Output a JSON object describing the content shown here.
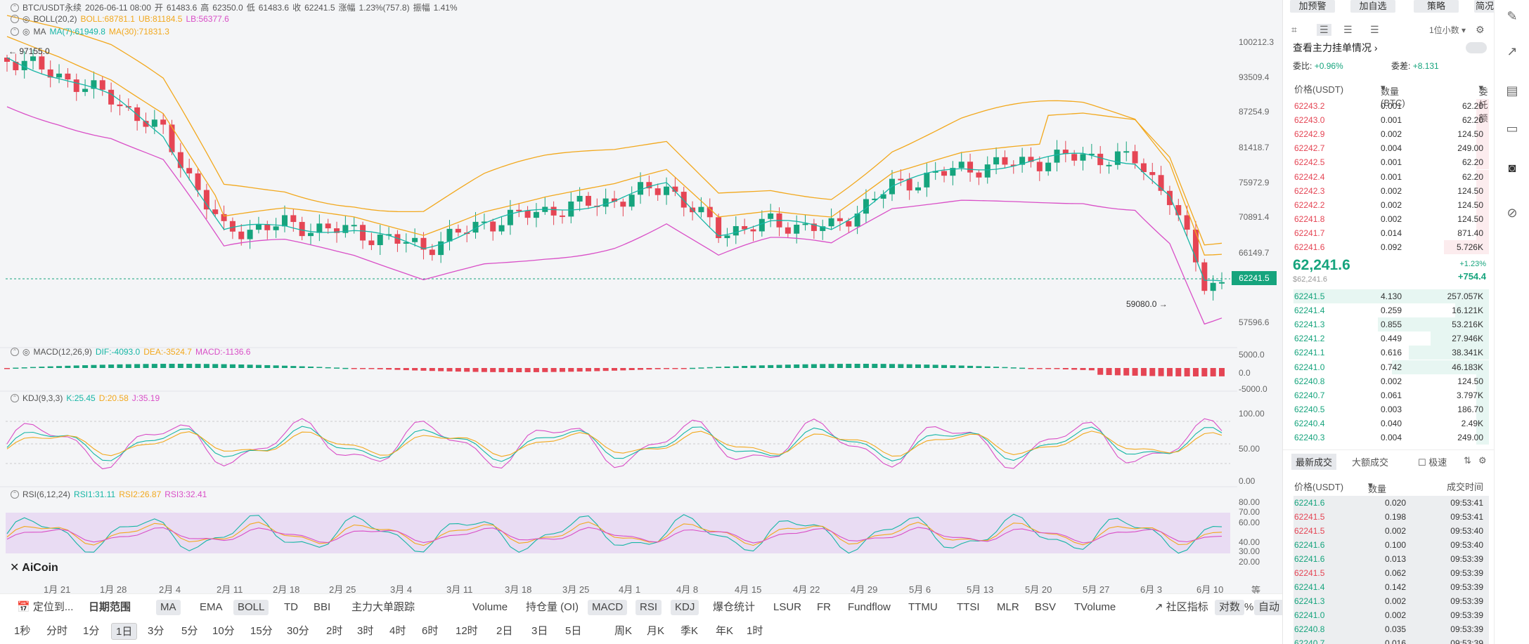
{
  "header": {
    "pair": "BTC/USDT永续",
    "datetime": "2026-06-11 08:00",
    "open_label": "开",
    "open": "61483.6",
    "high_label": "高",
    "high": "62350.0",
    "low_label": "低",
    "low": "61483.6",
    "close_label": "收",
    "close": "62241.5",
    "change_label": "涨幅",
    "change": "1.23%(757.8)",
    "amp_label": "振幅",
    "amp": "1.41%"
  },
  "boll": {
    "name": "BOLL(20,2)",
    "boll": "BOLL:68781.1",
    "ub": "UB:81184.5",
    "lb": "LB:56377.6"
  },
  "ma": {
    "name": "MA",
    "ma7": "MA(7):61949.8",
    "ma30": "MA(30):71831.3"
  },
  "macd": {
    "name": "MACD(12,26,9)",
    "dif": "DIF:-4093.0",
    "dea": "DEA:-3524.7",
    "macd": "MACD:-1136.6"
  },
  "kdj": {
    "name": "KDJ(9,3,3)",
    "k": "K:25.45",
    "d": "D:20.58",
    "j": "J:35.19"
  },
  "rsi": {
    "name": "RSI(6,12,24)",
    "rsi1": "RSI1:31.11",
    "rsi2": "RSI2:26.87",
    "rsi3": "RSI3:32.41"
  },
  "price_axis": [
    "100212.3",
    "93509.4",
    "87254.9",
    "81418.7",
    "75972.9",
    "70891.4",
    "66149.7",
    "57596.6"
  ],
  "current_price_tag": "62241.5",
  "macd_axis": [
    "5000.0",
    "0.0",
    "-5000.0"
  ],
  "kdj_axis": [
    "100.00",
    "50.00",
    "0.00"
  ],
  "rsi_axis": [
    "80.00",
    "70.00",
    "60.00",
    "40.00",
    "30.00",
    "20.00"
  ],
  "high_marker": "97155.0",
  "low_marker": "59080.0",
  "logo": "AiCoin",
  "date_axis": [
    "1月 21",
    "1月 28",
    "2月 4",
    "2月 11",
    "2月 18",
    "2月 25",
    "3月 4",
    "3月 11",
    "3月 18",
    "3月 25",
    "4月 1",
    "4月 8",
    "4月 15",
    "4月 22",
    "4月 29",
    "5月 6",
    "5月 13",
    "5月 20",
    "5月 27",
    "6月 3",
    "6月 10"
  ],
  "axis_corner": "等 爆",
  "indicators": {
    "locate": "定位到...",
    "date_range": "日期范围",
    "items": [
      "MA",
      "EMA",
      "BOLL",
      "TD",
      "BBI",
      "主力大单跟踪",
      "Volume",
      "持仓量 (OI)",
      "MACD",
      "RSI",
      "KDJ",
      "爆仓统计",
      "LSUR",
      "FR",
      "Fundflow",
      "TTMU",
      "TTSI",
      "MLR",
      "BSV",
      "TVolume"
    ],
    "community": "社区指标",
    "log": "对数",
    "pct": "%",
    "auto": "自动"
  },
  "timeframes": [
    "1秒",
    "分时",
    "1分",
    "1日",
    "3分",
    "5分",
    "10分",
    "15分",
    "30分",
    "2时",
    "3时",
    "4时",
    "6时",
    "12时",
    "2日",
    "3日",
    "5日",
    "周K",
    "月K",
    "季K",
    "年K",
    "1时"
  ],
  "active_timeframe": "1日",
  "panel": {
    "top_buttons": [
      "加预警",
      "加自选",
      "策略",
      "简况"
    ],
    "decimal": "1位小数",
    "main_orders": "查看主力挂单情况",
    "ratio_label": "委比:",
    "ratio": "+0.96%",
    "diff_label": "委差:",
    "diff": "+8.131",
    "col_price": "价格(USDT)",
    "col_qty": "数量 (BTC)",
    "col_amount": "委托额",
    "asks": [
      [
        "62243.2",
        "0.001",
        "62.20"
      ],
      [
        "62243.0",
        "0.001",
        "62.20"
      ],
      [
        "62242.9",
        "0.002",
        "124.50"
      ],
      [
        "62242.7",
        "0.004",
        "249.00"
      ],
      [
        "62242.5",
        "0.001",
        "62.20"
      ],
      [
        "62242.4",
        "0.001",
        "62.20"
      ],
      [
        "62242.3",
        "0.002",
        "124.50"
      ],
      [
        "62242.2",
        "0.002",
        "124.50"
      ],
      [
        "62241.8",
        "0.002",
        "124.50"
      ],
      [
        "62241.7",
        "0.014",
        "871.40"
      ],
      [
        "62241.6",
        "0.092",
        "5.726K"
      ]
    ],
    "last_price": "62,241.6",
    "last_fiat": "$62,241.6",
    "last_pct": "+1.23%",
    "last_change": "+754.4",
    "bids": [
      [
        "62241.5",
        "4.130",
        "257.057K"
      ],
      [
        "62241.4",
        "0.259",
        "16.121K"
      ],
      [
        "62241.3",
        "0.855",
        "53.216K"
      ],
      [
        "62241.2",
        "0.449",
        "27.946K"
      ],
      [
        "62241.1",
        "0.616",
        "38.341K"
      ],
      [
        "62241.0",
        "0.742",
        "46.183K"
      ],
      [
        "62240.8",
        "0.002",
        "124.50"
      ],
      [
        "62240.7",
        "0.061",
        "3.797K"
      ],
      [
        "62240.5",
        "0.003",
        "186.70"
      ],
      [
        "62240.4",
        "0.040",
        "2.49K"
      ],
      [
        "62240.3",
        "0.004",
        "249.00"
      ]
    ],
    "trades_tab": "最新成交",
    "large_tab": "大额成交",
    "fast": "极速",
    "t_col_price": "价格(USDT)",
    "t_col_qty": "数量(BTC)",
    "t_col_time": "成交时间",
    "trades": [
      [
        "62241.6",
        "0.020",
        "09:53:41",
        "up"
      ],
      [
        "62241.5",
        "0.198",
        "09:53:41",
        "dn"
      ],
      [
        "62241.5",
        "0.002",
        "09:53:40",
        "dn"
      ],
      [
        "62241.6",
        "0.100",
        "09:53:40",
        "up"
      ],
      [
        "62241.6",
        "0.013",
        "09:53:39",
        "up"
      ],
      [
        "62241.5",
        "0.062",
        "09:53:39",
        "dn"
      ],
      [
        "62241.4",
        "0.142",
        "09:53:39",
        "up"
      ],
      [
        "62241.3",
        "0.002",
        "09:53:39",
        "up"
      ],
      [
        "62241.0",
        "0.002",
        "09:53:39",
        "up"
      ],
      [
        "62240.8",
        "0.035",
        "09:53:39",
        "up"
      ],
      [
        "62240.7",
        "0.016",
        "09:53:39",
        "up"
      ]
    ]
  },
  "colors": {
    "up": "#16a47d",
    "down": "#e54554",
    "ma7": "#16b6a5",
    "ma30": "#f2a81d",
    "boll_band": "#d94fc7"
  }
}
